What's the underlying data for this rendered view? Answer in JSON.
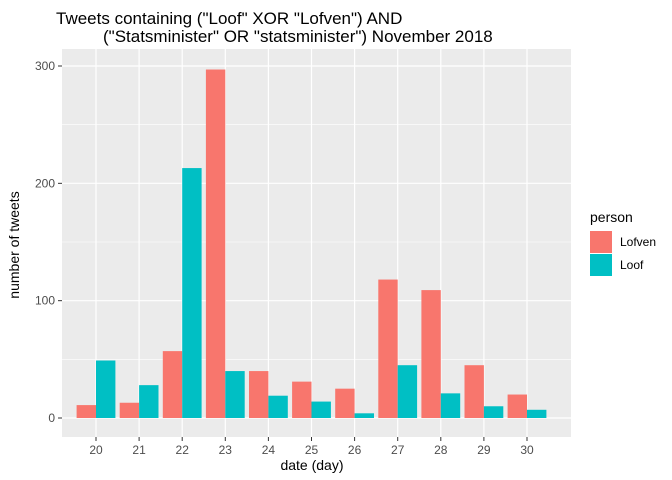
{
  "chart_data": {
    "type": "bar",
    "title": {
      "line1": "Tweets containing (\"Loof\" XOR \"Lofven\") AND",
      "line2": "(\"Statsminister\" OR \"statsminister\") November 2018"
    },
    "xlabel": "date (day)",
    "ylabel": "number of tweets",
    "categories": [
      "20",
      "21",
      "22",
      "23",
      "24",
      "25",
      "26",
      "27",
      "28",
      "29",
      "30"
    ],
    "series": [
      {
        "name": "Lofven",
        "color": "#F8766D",
        "values": [
          11,
          13,
          57,
          297,
          40,
          31,
          25,
          118,
          109,
          45,
          20
        ]
      },
      {
        "name": "Loof",
        "color": "#00BFC4",
        "values": [
          49,
          28,
          213,
          40,
          19,
          14,
          4,
          45,
          21,
          10,
          7
        ]
      }
    ],
    "ylim": [
      0,
      300
    ],
    "yticks": [
      0,
      100,
      200,
      300
    ],
    "grid": true,
    "legend": {
      "title": "person",
      "placement": "right"
    },
    "panel_color": "#EBEBEB",
    "grid_color": "#FFFFFF"
  }
}
